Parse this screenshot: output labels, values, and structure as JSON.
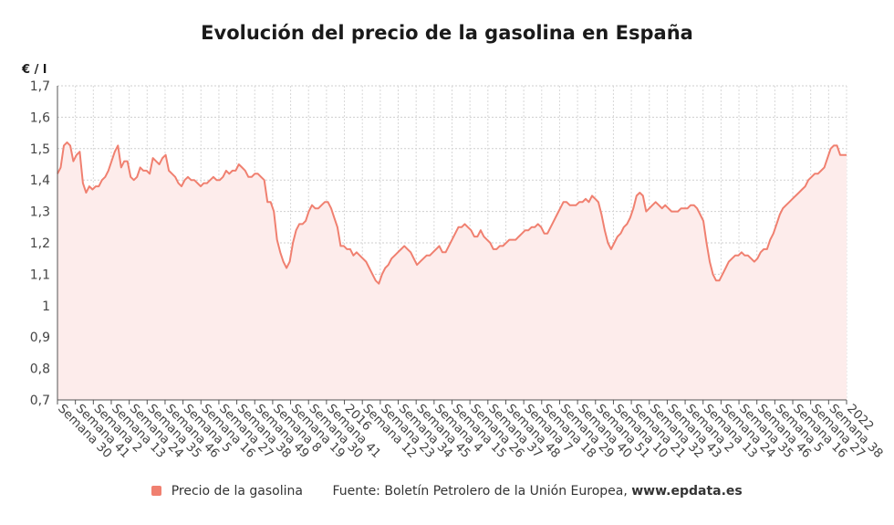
{
  "chart_data": {
    "type": "area",
    "title": "Evolución del precio de la gasolina en España",
    "ylabel": "€ / l",
    "ylim": [
      0.7,
      1.7
    ],
    "yticks": [
      "0,7",
      "0,8",
      "0,9",
      "1",
      "1,1",
      "1,2",
      "1,3",
      "1,4",
      "1,5",
      "1,6",
      "1,7"
    ],
    "grid": true,
    "legend_position": "bottom",
    "series": [
      {
        "name": "Precio de la gasolina",
        "color": "#f08070",
        "fill": "#fdeceb",
        "values": [
          1.42,
          1.44,
          1.51,
          1.52,
          1.51,
          1.46,
          1.48,
          1.49,
          1.39,
          1.36,
          1.38,
          1.37,
          1.38,
          1.38,
          1.4,
          1.41,
          1.43,
          1.46,
          1.49,
          1.51,
          1.44,
          1.46,
          1.46,
          1.41,
          1.4,
          1.41,
          1.44,
          1.43,
          1.43,
          1.42,
          1.47,
          1.46,
          1.45,
          1.47,
          1.48,
          1.43,
          1.42,
          1.41,
          1.39,
          1.38,
          1.4,
          1.41,
          1.4,
          1.4,
          1.39,
          1.38,
          1.39,
          1.39,
          1.4,
          1.41,
          1.4,
          1.4,
          1.41,
          1.43,
          1.42,
          1.43,
          1.43,
          1.45,
          1.44,
          1.43,
          1.41,
          1.41,
          1.42,
          1.42,
          1.41,
          1.4,
          1.33,
          1.33,
          1.3,
          1.21,
          1.17,
          1.14,
          1.12,
          1.14,
          1.2,
          1.24,
          1.26,
          1.26,
          1.27,
          1.3,
          1.32,
          1.31,
          1.31,
          1.32,
          1.33,
          1.33,
          1.31,
          1.28,
          1.25,
          1.19,
          1.19,
          1.18,
          1.18,
          1.16,
          1.17,
          1.16,
          1.15,
          1.14,
          1.12,
          1.1,
          1.08,
          1.07,
          1.1,
          1.12,
          1.13,
          1.15,
          1.16,
          1.17,
          1.18,
          1.19,
          1.18,
          1.17,
          1.15,
          1.13,
          1.14,
          1.15,
          1.16,
          1.16,
          1.17,
          1.18,
          1.19,
          1.17,
          1.17,
          1.19,
          1.21,
          1.23,
          1.25,
          1.25,
          1.26,
          1.25,
          1.24,
          1.22,
          1.22,
          1.24,
          1.22,
          1.21,
          1.2,
          1.18,
          1.18,
          1.19,
          1.19,
          1.2,
          1.21,
          1.21,
          1.21,
          1.22,
          1.23,
          1.24,
          1.24,
          1.25,
          1.25,
          1.26,
          1.25,
          1.23,
          1.23,
          1.25,
          1.27,
          1.29,
          1.31,
          1.33,
          1.33,
          1.32,
          1.32,
          1.32,
          1.33,
          1.33,
          1.34,
          1.33,
          1.35,
          1.34,
          1.33,
          1.29,
          1.24,
          1.2,
          1.18,
          1.2,
          1.22,
          1.23,
          1.25,
          1.26,
          1.28,
          1.31,
          1.35,
          1.36,
          1.35,
          1.3,
          1.31,
          1.32,
          1.33,
          1.32,
          1.31,
          1.32,
          1.31,
          1.3,
          1.3,
          1.3,
          1.31,
          1.31,
          1.31,
          1.32,
          1.32,
          1.31,
          1.29,
          1.27,
          1.2,
          1.14,
          1.1,
          1.08,
          1.08,
          1.1,
          1.12,
          1.14,
          1.15,
          1.16,
          1.16,
          1.17,
          1.16,
          1.16,
          1.15,
          1.14,
          1.15,
          1.17,
          1.18,
          1.18,
          1.21,
          1.23,
          1.26,
          1.29,
          1.31,
          1.32,
          1.33,
          1.34,
          1.35,
          1.36,
          1.37,
          1.38,
          1.4,
          1.41,
          1.42,
          1.42,
          1.43,
          1.44,
          1.47,
          1.5,
          1.51,
          1.51,
          1.48,
          1.48,
          1.48
        ]
      }
    ],
    "x_tick_labels": [
      "Semana 30",
      "Semana 41",
      "Semana 2",
      "Semana 13",
      "Semana 24",
      "Semana 35",
      "Semana 46",
      "Semana 5",
      "Semana 16",
      "Semana 27",
      "Semana 38",
      "Semana 49",
      "Semana 8",
      "Semana 19",
      "Semana 30",
      "Semana 41",
      "2016",
      "Semana 12",
      "Semana 23",
      "Semana 34",
      "Semana 45",
      "Semana 4",
      "Semana 15",
      "Semana 26",
      "Semana 37",
      "Semana 48",
      "Semana 7",
      "Semana 18",
      "Semana 29",
      "Semana 40",
      "Semana 51",
      "Semana 10",
      "Semana 21",
      "Semana 32",
      "Semana 43",
      "Semana 2",
      "Semana 13",
      "Semana 24",
      "Semana 35",
      "Semana 46",
      "Semana 5",
      "Semana 16",
      "Semana 27",
      "Semana 38",
      "2022"
    ]
  },
  "legend": {
    "series_label": "Precio de la gasolina",
    "source_prefix": "Fuente: Boletín Petrolero de la Unión Europea,",
    "source_site": "www.epdata.es"
  }
}
